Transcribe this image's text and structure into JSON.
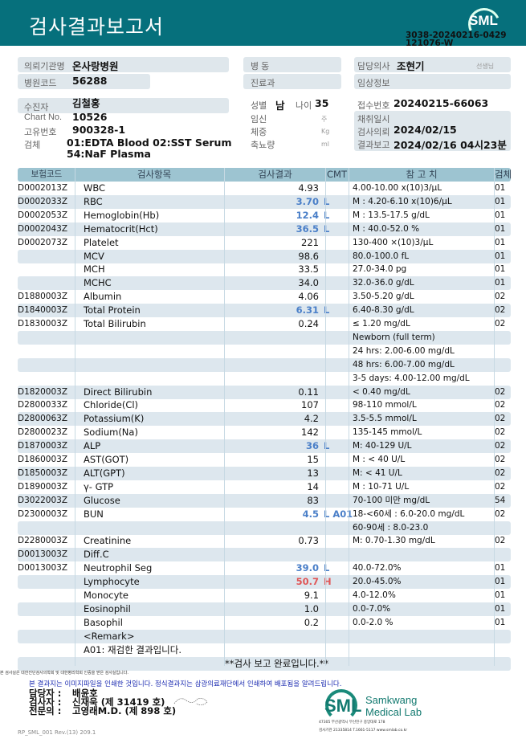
{
  "header": {
    "title": "검사결과보고서",
    "logo": "SML",
    "doc_id": "3038-20240216-0429",
    "doc_sub": "121076-W"
  },
  "info": {
    "hospital_label": "의뢰기관명",
    "hospital": "온사랑병원",
    "hospital_code_label": "병원코드",
    "hospital_code": "56288",
    "ward_label": "병  동",
    "dept_label": "진료과",
    "doctor_label": "담당의사",
    "doctor": "조현기",
    "doctor_suffix": "선생님",
    "clinical_label": "임상정보",
    "patient_label": "수진자",
    "patient": "김철홍",
    "chart_label": "Chart No.",
    "chart": "10526",
    "uid_label": "고유번호",
    "uid": "900328-1",
    "specimen_label": "검체",
    "specimen1": "01:EDTA Blood 02:SST Serum",
    "specimen2": "54:NaF Plasma",
    "sex_label": "성별",
    "sex": "남",
    "age_label": "나이",
    "age": "35",
    "preg_label": "임신",
    "preg_unit": "주",
    "weight_label": "체중",
    "weight_unit": "Kg",
    "urine_label": "축뇨량",
    "urine_unit": "ml",
    "receipt_label": "접수번호",
    "receipt": "20240215-66063",
    "collect_label": "채취일시",
    "request_label": "검사의뢰",
    "request": "2024/02/15",
    "report_label": "결과보고",
    "report": "2024/02/16 04시23분"
  },
  "table": {
    "headers": [
      "보험코드",
      "검사항목",
      "검사결과",
      "CMT",
      "참 고 치",
      "검체"
    ],
    "rows": [
      [
        "D0002013Z",
        "WBC",
        "4.93",
        "",
        "4.00-10.00 x(10)3/μL",
        "01"
      ],
      [
        "D0002033Z",
        "RBC",
        "3.70",
        "L",
        "M : 4.20-6.10 x(10)6/μL",
        "01"
      ],
      [
        "D0002053Z",
        "Hemoglobin(Hb)",
        "12.4",
        "L",
        "M : 13.5-17.5 g/dL",
        "01"
      ],
      [
        "D0002043Z",
        "Hematocrit(Hct)",
        "36.5",
        "L",
        "M : 40.0-52.0 %",
        "01"
      ],
      [
        "D0002073Z",
        "Platelet",
        "221",
        "",
        "130-400 ×(10)3/μL",
        "01"
      ],
      [
        "",
        "MCV",
        "98.6",
        "",
        "80.0-100.0 fL",
        "01"
      ],
      [
        "",
        "MCH",
        "33.5",
        "",
        "27.0-34.0 pg",
        "01"
      ],
      [
        "",
        "MCHC",
        "34.0",
        "",
        "32.0-36.0 g/dL",
        "01"
      ],
      [
        "D1880003Z",
        "Albumin",
        "4.06",
        "",
        "3.50-5.20 g/dL",
        "02"
      ],
      [
        "D1840003Z",
        "Total Protein",
        "6.31",
        "L",
        "6.40-8.30 g/dL",
        "02"
      ],
      [
        "D1830003Z",
        "Total Bilirubin",
        "0.24",
        "",
        "≤ 1.20 mg/dL",
        "02"
      ],
      [
        "",
        "",
        "",
        "",
        "Newborn (full term)",
        ""
      ],
      [
        "",
        "",
        "",
        "",
        "24 hrs: 2.00-6.00 mg/dL",
        ""
      ],
      [
        "",
        "",
        "",
        "",
        "48 hrs: 6.00-7.00 mg/dL",
        ""
      ],
      [
        "",
        "",
        "",
        "",
        "3-5 days: 4.00-12.00 mg/dL",
        ""
      ],
      [
        "D1820003Z",
        "Direct Bilirubin",
        "0.11",
        "",
        "< 0.40 mg/dL",
        "02"
      ],
      [
        "D2800033Z",
        "Chloride(Cl)",
        "107",
        "",
        "98-110 mmol/L",
        "02"
      ],
      [
        "D2800063Z",
        "Potassium(K)",
        "4.2",
        "",
        "3.5-5.5 mmol/L",
        "02"
      ],
      [
        "D2800023Z",
        "Sodium(Na)",
        "142",
        "",
        "135-145 mmol/L",
        "02"
      ],
      [
        "D1870003Z",
        "ALP",
        "36",
        "L",
        "M: 40-129 U/L",
        "02"
      ],
      [
        "D1860003Z",
        "AST(GOT)",
        "15",
        "",
        "M : < 40 U/L",
        "02"
      ],
      [
        "D1850003Z",
        "ALT(GPT)",
        "13",
        "",
        "M: < 41 U/L",
        "02"
      ],
      [
        "D1890003Z",
        "γ- GTP",
        "14",
        "",
        "M : 10-71 U/L",
        "02"
      ],
      [
        "D3022003Z",
        "Glucose",
        "83",
        "",
        "70-100 미만 mg/dL",
        "54"
      ],
      [
        "D2300003Z",
        "BUN",
        "4.5",
        "L A01",
        "18-<60세 : 6.0-20.0 mg/dL",
        "02"
      ],
      [
        "",
        "",
        "",
        "",
        "60-90세 : 8.0-23.0",
        ""
      ],
      [
        "D2280003Z",
        "Creatinine",
        "0.73",
        "",
        "M: 0.70-1.30 mg/dL",
        "02"
      ],
      [
        "D0013003Z",
        "Diff.C",
        "",
        "",
        "",
        ""
      ],
      [
        "D0013003Z",
        "Neutrophil Seg",
        "39.0",
        "L",
        "40.0-72.0%",
        "01"
      ],
      [
        "",
        "Lymphocyte",
        "50.7",
        "H",
        "20.0-45.0%",
        "01"
      ],
      [
        "",
        "Monocyte",
        "9.1",
        "",
        "4.0-12.0%",
        "01"
      ],
      [
        "",
        "Eosinophil",
        "1.0",
        "",
        "0.0-7.0%",
        "01"
      ],
      [
        "",
        "Basophil",
        "0.2",
        "",
        "0.0-2.0 %",
        "01"
      ],
      [
        "",
        "<Remark>",
        "",
        "",
        "",
        ""
      ],
      [
        "",
        "A01: 재검한 결과입니다.",
        "",
        "",
        "",
        ""
      ]
    ],
    "completion": "**검사  보고  완료입니다.**"
  },
  "footer": {
    "notice_small": "본 검사실은 대한진단검사의학회 및 대한병리학회 인증을 받은 검사실입니다.",
    "notice": "본 결과지는 이미지파일을 인쇄한 것입니다. 정식결과지는 삼광의료재단에서 인쇄하여 배포됨을 알려드립니다.",
    "staff_label": "담당자 :",
    "staff": "배윤호",
    "tester_label": "검사자 :",
    "tester": "신재욱 (제 31419 호)",
    "specialist_label": "전문의 :",
    "specialist": "고영래M.D. (제 898 호)",
    "brand_logo": "SML",
    "brand_name1": "Samkwang",
    "brand_name2": "Medical Lab",
    "address": "47305 부산광역시 부산진구 중앙대로 178",
    "contact": "검사기관 21335814 T.1661-5117 www.smlab.co.kr",
    "form_id": "RP_SML_001 Rev.(13) 209.1"
  }
}
